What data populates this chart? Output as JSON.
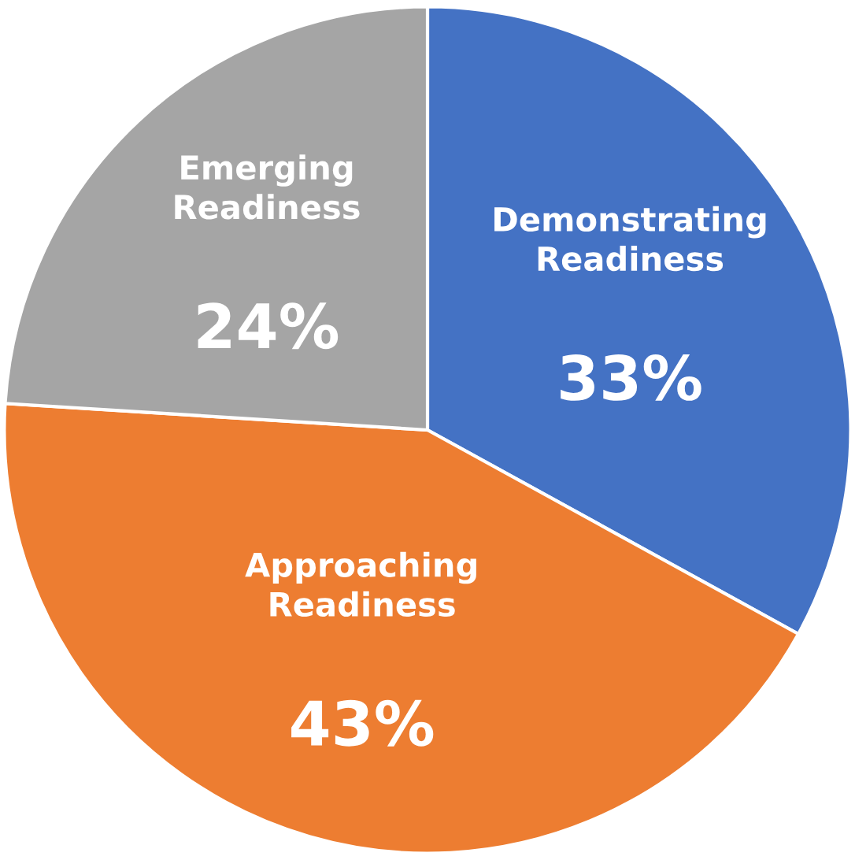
{
  "chart_data": {
    "type": "pie",
    "categories": [
      "Demonstrating\nReadiness",
      "Approaching\nReadiness",
      "Emerging\nReadiness"
    ],
    "values": [
      33,
      43,
      24
    ],
    "value_labels": [
      "33%",
      "43%",
      "24%"
    ],
    "colors": [
      "#4472c4",
      "#ed7d31",
      "#a5a5a5"
    ],
    "legend": false
  }
}
